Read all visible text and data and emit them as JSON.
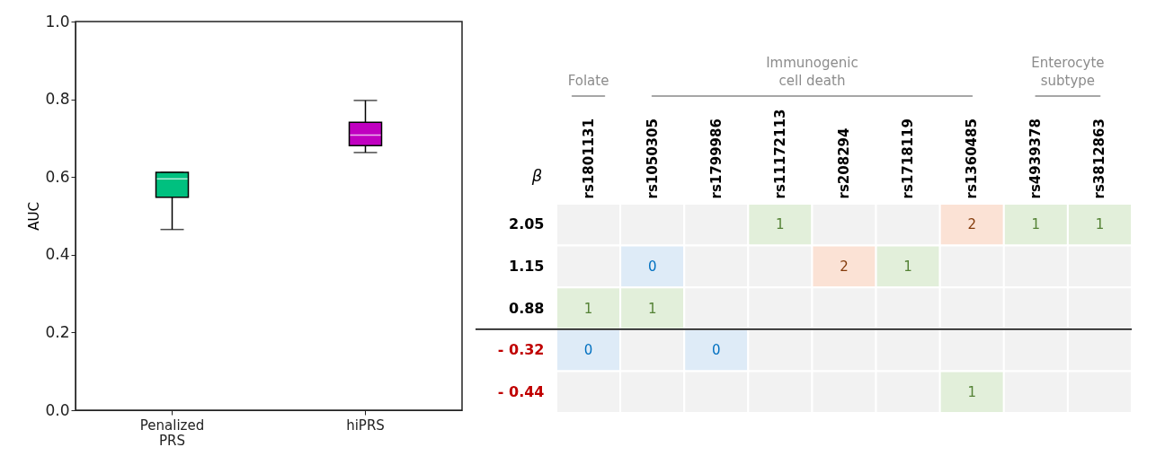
{
  "chart_data": [
    {
      "type": "box",
      "ylabel": "AUC",
      "categories": [
        "Penalized PRS",
        "hiPRS"
      ],
      "colors": [
        "#00c07f",
        "#c000c0"
      ],
      "boxes": [
        {
          "low": 0.465,
          "q1": 0.548,
          "median": 0.595,
          "q3": 0.612,
          "high": 0.612
        },
        {
          "low": 0.663,
          "q1": 0.681,
          "median": 0.708,
          "q3": 0.741,
          "high": 0.797
        }
      ],
      "ylim": [
        0,
        1
      ],
      "yticks": [
        {
          "value": 0,
          "label": "0.0"
        },
        0.2,
        0.4,
        0.6,
        0.8,
        {
          "value": 1,
          "label": "1.0"
        }
      ],
      "grid": false,
      "legend": false
    },
    {
      "type": "heatmap",
      "ylabel": "β",
      "categories": [
        "rs1801131",
        "rs1050305",
        "rs1799986",
        "rs11172113",
        "rs208294",
        "rs1718119",
        "rs1360485",
        "rs4939378",
        "rs3812863"
      ],
      "y_categories": [
        "2.05",
        "1.15",
        "0.88",
        "- 0.32",
        "- 0.44"
      ],
      "cells": [
        [
          null,
          null,
          null,
          1,
          null,
          null,
          2,
          1,
          1
        ],
        [
          null,
          0,
          null,
          null,
          2,
          1,
          null,
          null,
          null
        ],
        [
          1,
          1,
          null,
          null,
          null,
          null,
          null,
          null,
          null
        ],
        [
          0,
          null,
          0,
          null,
          null,
          null,
          null,
          null,
          null
        ],
        [
          null,
          null,
          null,
          null,
          null,
          null,
          1,
          null,
          null
        ]
      ],
      "colors": [
        "#deebf7",
        "#e2efda",
        "#fbe2d5"
      ],
      "data_labels": true,
      "annotations": [
        "Folate",
        "Immunogenic cell death",
        "Enterocyte subtype"
      ]
    }
  ]
}
